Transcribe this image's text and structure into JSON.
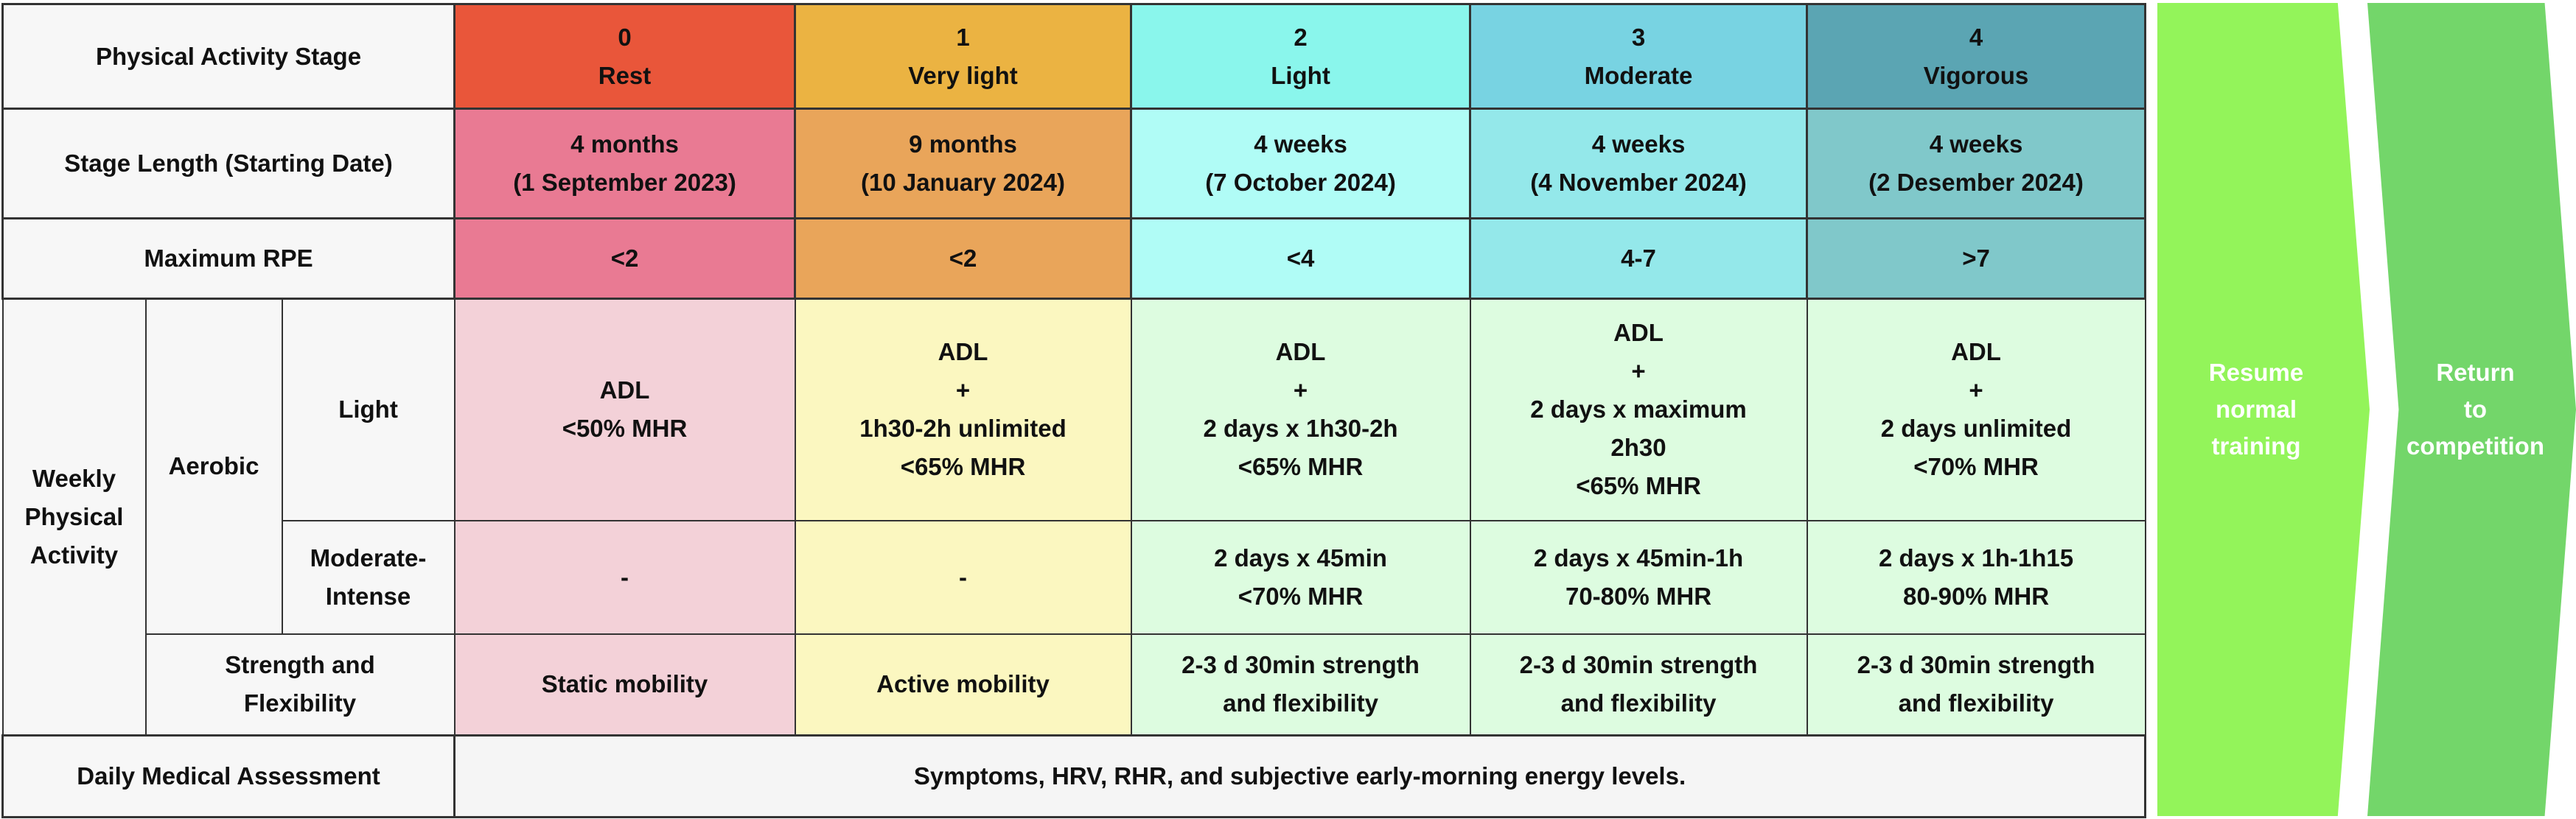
{
  "row_labels": {
    "stage": "Physical Activity Stage",
    "length": "Stage Length (Starting Date)",
    "rpe": "Maximum RPE",
    "weekly": "Weekly Physical Activity",
    "aerobic": "Aerobic",
    "light": "Light",
    "moderate_intense": "Moderate-Intense",
    "strength": "Strength and Flexibility",
    "daily": "Daily Medical Assessment"
  },
  "stages": [
    {
      "number": "0",
      "name": "Rest",
      "length": "4 months",
      "start": "(1 September 2023)",
      "rpe": "<2",
      "aerobic_light": [
        "ADL",
        "<50% MHR"
      ],
      "aerobic_moderate": [
        "-"
      ],
      "strength": [
        "Static mobility"
      ],
      "head_color": "#E9563A",
      "sub_color": "#E97A93",
      "body_color": "#F3D1D8"
    },
    {
      "number": "1",
      "name": "Very light",
      "length": "9 months",
      "start": "(10 January 2024)",
      "rpe": "<2",
      "aerobic_light": [
        "ADL",
        "+",
        "1h30-2h unlimited",
        "<65% MHR"
      ],
      "aerobic_moderate": [
        "-"
      ],
      "strength": [
        "Active mobility"
      ],
      "head_color": "#EBB342",
      "sub_color": "#E9A55A",
      "body_color": "#FBF7C0"
    },
    {
      "number": "2",
      "name": "Light",
      "length": "4 weeks",
      "start": "(7 October 2024)",
      "rpe": "<4",
      "aerobic_light": [
        "ADL",
        "+",
        "2 days x 1h30-2h",
        "<65% MHR"
      ],
      "aerobic_moderate": [
        "2 days x 45min",
        "<70% MHR"
      ],
      "strength": [
        "2-3 d 30min strength",
        "and flexibility"
      ],
      "head_color": "#8AF6EC",
      "sub_color": "#B0FCF6",
      "body_color": "#DDFCE0"
    },
    {
      "number": "3",
      "name": "Moderate",
      "length": "4 weeks",
      "start": "(4 November 2024)",
      "rpe": "4-7",
      "aerobic_light": [
        "ADL",
        "+",
        "2 days x maximum",
        "2h30",
        "<65% MHR"
      ],
      "aerobic_moderate": [
        "2 days x 45min-1h",
        "70-80% MHR"
      ],
      "strength": [
        "2-3 d 30min strength",
        "and flexibility"
      ],
      "head_color": "#78D3E2",
      "sub_color": "#94E8EA",
      "body_color": "#DDFCE0"
    },
    {
      "number": "4",
      "name": "Vigorous",
      "length": "4 weeks",
      "start": "(2 Desember 2024)",
      "rpe": ">7",
      "aerobic_light": [
        "ADL",
        "+",
        "2 days unlimited",
        "<70% MHR"
      ],
      "aerobic_moderate": [
        "2 days x 1h-1h15",
        "80-90% MHR"
      ],
      "strength": [
        "2-3 d 30min strength",
        "and flexibility"
      ],
      "head_color": "#5BA5B3",
      "sub_color": "#80C8CA",
      "body_color": "#DDFCE0"
    }
  ],
  "daily_assessment": "Symptoms, HRV, RHR, and subjective early-morning energy levels.",
  "arrows": [
    {
      "lines": [
        "Resume",
        "normal",
        "training"
      ],
      "color": "#93F45A"
    },
    {
      "lines": [
        "Return",
        "to",
        "competition"
      ],
      "color": "#73D66A"
    }
  ]
}
